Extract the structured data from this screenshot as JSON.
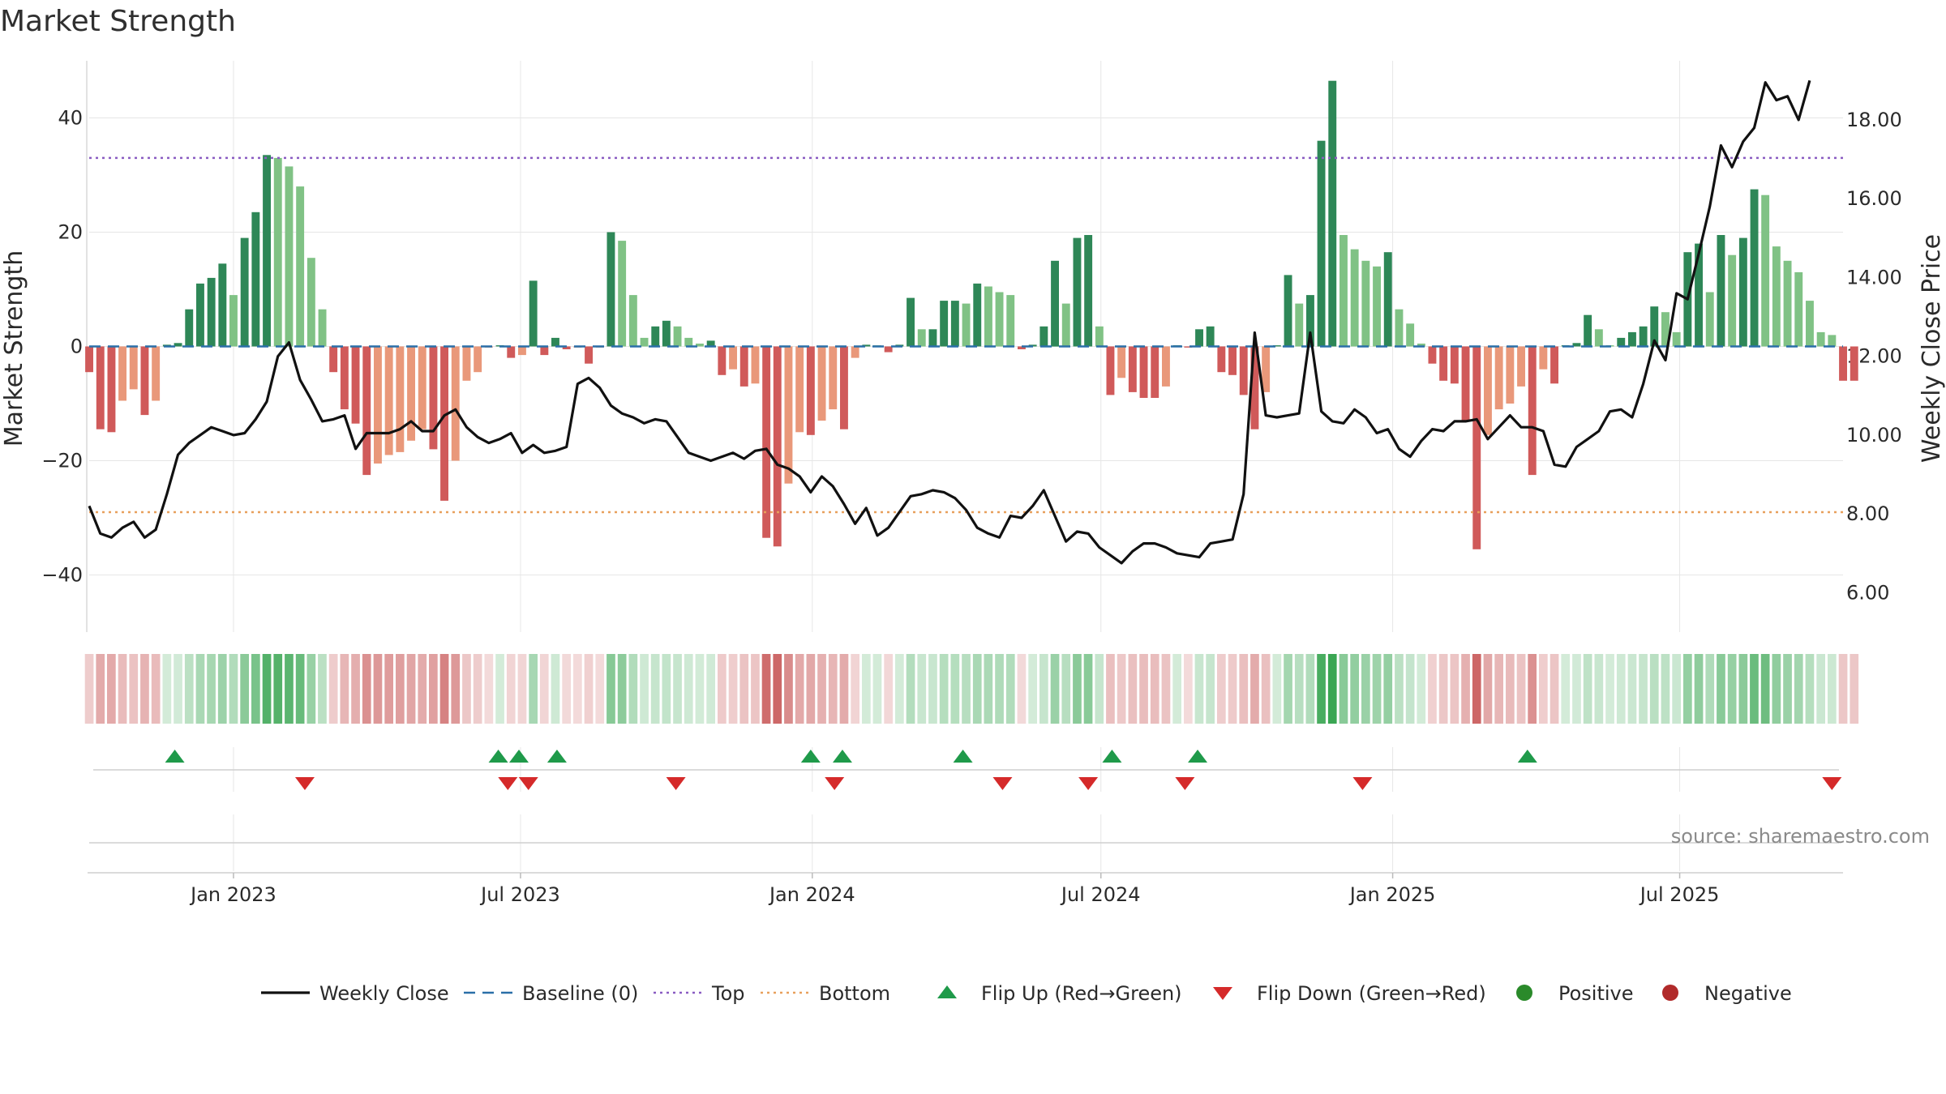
{
  "chart_data": {
    "type": "bar",
    "title": "Market Strength",
    "ylabel_left": "Market Strength",
    "ylabel_right": "Weekly Close Price",
    "ylim_left": [
      -50,
      50
    ],
    "ylim_right": [
      5.0,
      19.5
    ],
    "yticks_left": [
      40,
      20,
      0,
      -20,
      -40
    ],
    "ytick_labels_left": [
      "40",
      "20",
      "0",
      "−20",
      "−40"
    ],
    "yticks_right": [
      18,
      16,
      14,
      12,
      10,
      8,
      6
    ],
    "ytick_labels_right": [
      "18.00",
      "16.00",
      "14.00",
      "12.00",
      "10.00",
      "8.00",
      "6.00"
    ],
    "x_start": "2022-10-02",
    "x_end": "2025-10-12",
    "xticks": [
      {
        "date": "2023-01-01",
        "label": "Jan 2023"
      },
      {
        "date": "2023-07-01",
        "label": "Jul 2023"
      },
      {
        "date": "2024-01-01",
        "label": "Jan 2024"
      },
      {
        "date": "2024-07-01",
        "label": "Jul 2024"
      },
      {
        "date": "2025-01-01",
        "label": "Jan 2025"
      },
      {
        "date": "2025-07-01",
        "label": "Jul 2025"
      }
    ],
    "top_level": 33,
    "bottom_level": -29,
    "baseline": 0,
    "weeks_start": "2022-10-02",
    "strength": [
      -4.5,
      -14.5,
      -15,
      -9.5,
      -7.5,
      -12,
      -9.5,
      0.3,
      0.6,
      6.5,
      11,
      12,
      14.5,
      9,
      19,
      23.5,
      33.5,
      33,
      31.5,
      28,
      15.5,
      6.5,
      -4.5,
      -11,
      -13.5,
      -22.5,
      -20.5,
      -19,
      -18.5,
      -16.5,
      -14.5,
      -18,
      -27,
      -20,
      -6,
      -4.5,
      -0.2,
      0.2,
      -2,
      -1.5,
      11.5,
      -1.5,
      1.5,
      -0.5,
      -0.2,
      -3,
      -0.2,
      20,
      18.5,
      9,
      1.5,
      3.5,
      4.5,
      3.5,
      1.5,
      0.5,
      1,
      -5,
      -4,
      -7,
      -6.5,
      -33.5,
      -35,
      -24,
      -15,
      -15.5,
      -13,
      -11,
      -14.5,
      -2,
      0.3,
      0.2,
      -1,
      0.3,
      8.5,
      3,
      3,
      8,
      8,
      7.5,
      11,
      10.5,
      9.5,
      9,
      -0.5,
      0.3,
      3.5,
      15,
      7.5,
      19,
      19.5,
      3.5,
      -8.5,
      -5.5,
      -8,
      -9,
      -9,
      -7,
      0.2,
      -0.2,
      3,
      3.5,
      -4.5,
      -5,
      -8.5,
      -14.5,
      -8,
      0.2,
      12.5,
      7.5,
      9,
      36,
      46.5,
      19.5,
      17,
      15,
      14,
      16.5,
      6.5,
      4,
      0.5,
      -3,
      -6,
      -6.5,
      -13,
      -35.5,
      -15.5,
      -11,
      -10,
      -7,
      -22.5,
      -4,
      -6.5,
      0.2,
      0.6,
      5.5,
      3,
      0.2,
      1.5,
      2.5,
      3.5,
      7,
      6,
      2.5,
      16.5,
      18,
      9.5,
      19.5,
      16,
      19,
      27.5,
      26.5,
      17.5,
      15,
      13,
      8,
      2.5,
      2,
      -6,
      -6
    ],
    "weekly_close": [
      8.2,
      7.5,
      7.4,
      7.65,
      7.8,
      7.4,
      7.6,
      8.5,
      9.5,
      9.8,
      10,
      10.2,
      10.1,
      10,
      10.05,
      10.4,
      10.85,
      12,
      12.35,
      11.4,
      10.9,
      10.35,
      10.4,
      10.5,
      9.65,
      10.05,
      10.05,
      10.05,
      10.15,
      10.35,
      10.1,
      10.1,
      10.5,
      10.65,
      10.2,
      9.95,
      9.8,
      9.9,
      10.05,
      9.55,
      9.75,
      9.55,
      9.6,
      9.7,
      11.3,
      11.45,
      11.2,
      10.75,
      10.55,
      10.45,
      10.3,
      10.4,
      10.35,
      9.95,
      9.55,
      9.45,
      9.35,
      9.45,
      9.55,
      9.4,
      9.6,
      9.65,
      9.25,
      9.15,
      8.95,
      8.55,
      8.95,
      8.7,
      8.25,
      7.75,
      8.15,
      7.45,
      7.65,
      8.05,
      8.45,
      8.5,
      8.6,
      8.55,
      8.4,
      8.1,
      7.65,
      7.5,
      7.4,
      7.95,
      7.9,
      8.2,
      8.6,
      7.95,
      7.3,
      7.55,
      7.5,
      7.15,
      6.95,
      6.75,
      7.05,
      7.25,
      7.25,
      7.15,
      7,
      6.95,
      6.9,
      7.25,
      7.3,
      7.35,
      8.5,
      12.6,
      10.5,
      10.45,
      10.5,
      10.55,
      12.6,
      10.6,
      10.35,
      10.3,
      10.65,
      10.45,
      10.05,
      10.15,
      9.65,
      9.45,
      9.85,
      10.15,
      10.1,
      10.35,
      10.35,
      10.4,
      9.9,
      10.2,
      10.5,
      10.2,
      10.2,
      10.1,
      9.25,
      9.2,
      9.7,
      9.9,
      10.1,
      10.6,
      10.65,
      10.45,
      11.3,
      12.4,
      11.9,
      13.6,
      13.45,
      14.6,
      15.8,
      17.35,
      16.8,
      17.45,
      17.8,
      18.95,
      18.5,
      18.6,
      18,
      19
    ],
    "flip_up_dates": [
      "2022-11-25",
      "2023-06-17",
      "2023-06-30",
      "2023-07-24",
      "2023-12-31",
      "2024-01-20",
      "2024-04-05",
      "2024-07-08",
      "2024-08-31",
      "2025-03-27"
    ],
    "flip_down_dates": [
      "2023-02-15",
      "2023-06-23",
      "2023-07-06",
      "2023-10-07",
      "2024-01-15",
      "2024-04-30",
      "2024-06-23",
      "2024-08-23",
      "2024-12-13",
      "2025-10-05"
    ],
    "legend": [
      "Weekly Close",
      "Baseline (0)",
      "Top",
      "Bottom",
      "Flip Up (Red→Green)",
      "Flip Down (Green→Red)",
      "Positive",
      "Negative"
    ],
    "source": "source: sharemaestro.com",
    "colors": {
      "bar_pos_strong": "#2e8757",
      "bar_pos_weak": "#80c285",
      "bar_neg_strong": "#d05a5a",
      "bar_neg_weak": "#e9987a",
      "line": "#111111",
      "baseline": "#2a6fa8",
      "top": "#8a5cc2",
      "bottom": "#e8a05c",
      "flip_up": "#1f9a4a",
      "flip_down": "#d52a2a",
      "positive": "#2a8a2a",
      "negative": "#b12a2a",
      "grid": "#e6e6e6"
    }
  }
}
